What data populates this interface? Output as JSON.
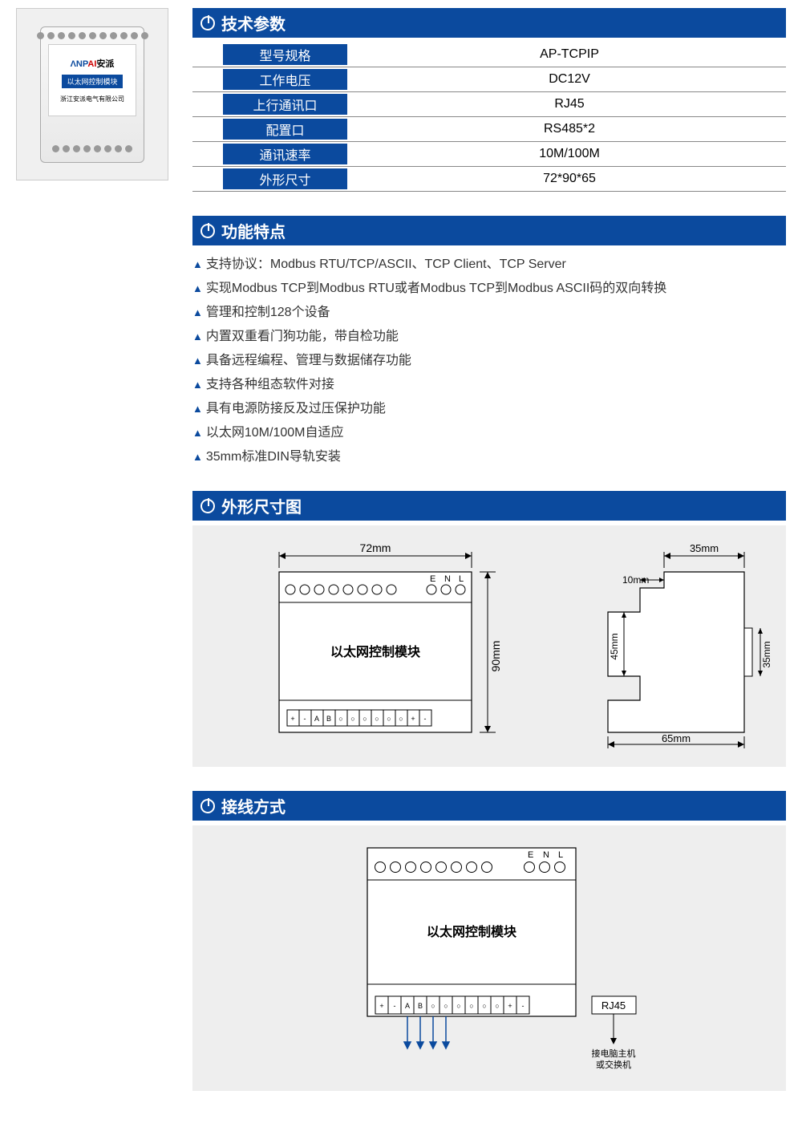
{
  "colors": {
    "brand_blue": "#0b4a9e",
    "panel_gray": "#eeeeee",
    "border_gray": "#888888",
    "text": "#333333",
    "white": "#ffffff"
  },
  "product_photo": {
    "brand": "ANPAI安派",
    "module_label": "以太网控制模块",
    "company": "浙江安派电气有限公司"
  },
  "specs": {
    "header": "技术参数",
    "rows": [
      {
        "label": "型号规格",
        "value": "AP-TCPIP"
      },
      {
        "label": "工作电压",
        "value": "DC12V"
      },
      {
        "label": "上行通讯口",
        "value": "RJ45"
      },
      {
        "label": "配置口",
        "value": "RS485*2"
      },
      {
        "label": "通讯速率",
        "value": "10M/100M"
      },
      {
        "label": "外形尺寸",
        "value": "72*90*65"
      }
    ]
  },
  "features": {
    "header": "功能特点",
    "items": [
      "支持协议：Modbus RTU/TCP/ASCII、TCP Client、TCP Server",
      "实现Modbus TCP到Modbus RTU或者Modbus TCP到Modbus ASCII码的双向转换",
      "管理和控制128个设备",
      "内置双重看门狗功能，带自检功能",
      "具备远程编程、管理与数据储存功能",
      "支持各种组态软件对接",
      "具有电源防接反及过压保护功能",
      "以太网10M/100M自适应",
      "35mm标准DIN导轨安装"
    ]
  },
  "dimensions": {
    "header": "外形尺寸图",
    "front": {
      "width_label": "72mm",
      "height_label": "90mm",
      "module_text": "以太网控制模块",
      "top_pins": [
        "E",
        "N",
        "L"
      ],
      "bottom_pins": [
        "+",
        "-",
        "A",
        "B",
        "○",
        "○",
        "○",
        "○",
        "○",
        "○",
        "+",
        "-"
      ]
    },
    "side": {
      "top_width": "35mm",
      "notch": "10mm",
      "mid_height": "45mm",
      "clip_height": "35mm",
      "bottom_width": "65mm"
    }
  },
  "wiring": {
    "header": "接线方式",
    "module_text": "以太网控制模块",
    "top_pins": [
      "E",
      "N",
      "L"
    ],
    "bottom_pins": [
      "+",
      "-",
      "A",
      "B",
      "○",
      "○",
      "○",
      "○",
      "○",
      "○",
      "+",
      "-"
    ],
    "rj45_label": "RJ45",
    "arrow_note": "接电脑主机\n或交换机"
  }
}
